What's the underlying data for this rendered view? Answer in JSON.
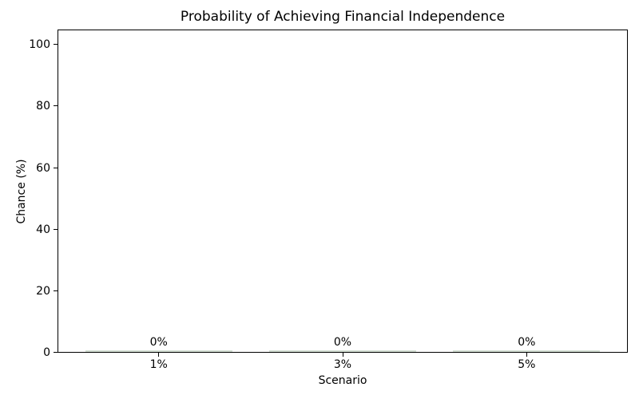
{
  "chart_data": {
    "type": "bar",
    "title": "Probability of Achieving Financial Independence",
    "xlabel": "Scenario",
    "ylabel": "Chance (%)",
    "categories": [
      "1%",
      "3%",
      "5%"
    ],
    "values": [
      0,
      0,
      0
    ],
    "bar_labels": [
      "0%",
      "0%",
      "0%"
    ],
    "yticks": [
      0,
      20,
      40,
      60,
      80,
      100
    ],
    "ylim": [
      0,
      105
    ],
    "xlim": [
      -0.55,
      2.55
    ],
    "bar_width_units": 0.8,
    "grid": false,
    "legend": false,
    "bar_color": "#d4dfd4",
    "text_color": "#000000",
    "spine_color": "#000000",
    "background_color": "#ffffff"
  }
}
